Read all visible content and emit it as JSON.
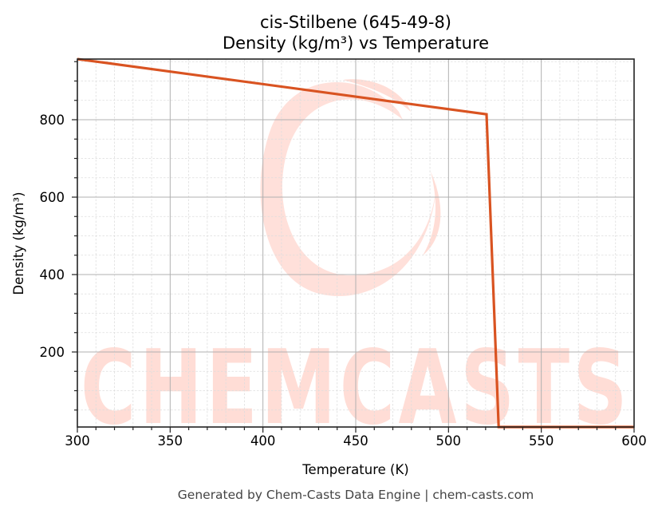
{
  "chart_data": {
    "type": "line",
    "title": "cis-Stilbene (645-49-8)",
    "subtitle": "Density (kg/m³) vs Temperature",
    "xlabel": "Temperature (K)",
    "ylabel": "Density (kg/m³)",
    "xlim": [
      300,
      600
    ],
    "ylim": [
      5,
      957
    ],
    "x_ticks": [
      300,
      350,
      400,
      450,
      500,
      550,
      600
    ],
    "y_ticks": [
      200,
      400,
      600,
      800
    ],
    "grid": true,
    "minor_grid": true,
    "legend": null,
    "series": [
      {
        "name": "Density",
        "color": "#d95321",
        "x": [
          300,
          520.5,
          527,
          600
        ],
        "y": [
          957,
          814,
          5,
          5
        ]
      }
    ]
  },
  "labels": {
    "title_line1": "cis-Stilbene (645-49-8)",
    "title_line2": "Density (kg/m³) vs Temperature",
    "xlabel": "Temperature (K)",
    "ylabel": "Density (kg/m³)",
    "x_ticks": [
      "300",
      "350",
      "400",
      "450",
      "500",
      "550",
      "600"
    ],
    "y_ticks": [
      "200",
      "400",
      "600",
      "800"
    ],
    "footer": "Generated by Chem-Casts Data Engine | chem-casts.com",
    "watermark": "CHEMCASTS"
  },
  "colors": {
    "line": "#d95321",
    "watermark": "#ffddd6",
    "major_grid": "#b0b0b0",
    "minor_grid": "#dddddd",
    "axes": "#222222",
    "footer": "#444444"
  }
}
